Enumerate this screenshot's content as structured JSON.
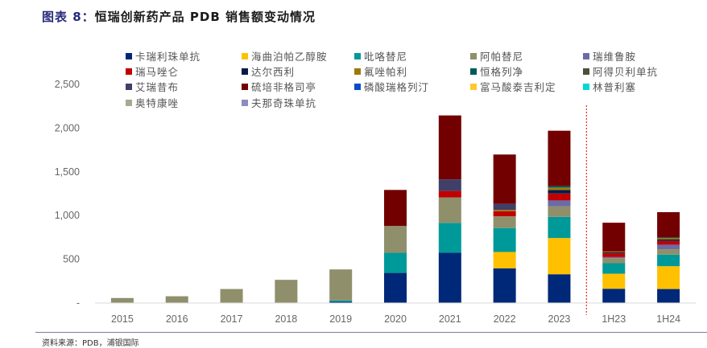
{
  "header": {
    "figure_label": "图表 8：",
    "title": "恒瑞创新药产品 PDB 销售额变动情况"
  },
  "footer": {
    "source": "资料来源：PDB，浦银国际"
  },
  "chart_data": {
    "type": "bar",
    "stacked": true,
    "title": "恒瑞创新药产品 PDB 销售额变动情况",
    "xlabel": "",
    "ylabel": "",
    "ylim": [
      0,
      2500
    ],
    "yticks": [
      0,
      500,
      1000,
      1500,
      2000,
      2500
    ],
    "ytick_labels": [
      "-",
      "500",
      "1,000",
      "1,500",
      "2,000",
      "2,500"
    ],
    "grid": false,
    "legend_position": "top",
    "separator_after_category": "2023",
    "separator_color": "#E0403A",
    "categories": [
      "2015",
      "2016",
      "2017",
      "2018",
      "2019",
      "2020",
      "2021",
      "2022",
      "2023",
      "1H23",
      "1H24"
    ],
    "series": [
      {
        "name": "卡瑞利珠单抗",
        "color": "#002878",
        "values": [
          0,
          0,
          0,
          0,
          15,
          344,
          575,
          396,
          329,
          163,
          160
        ]
      },
      {
        "name": "海曲泊帕乙醇胺",
        "color": "#FFC000",
        "values": [
          0,
          0,
          0,
          0,
          0,
          0,
          0,
          188,
          414,
          172,
          261
        ]
      },
      {
        "name": "吡咯替尼",
        "color": "#009999",
        "values": [
          0,
          0,
          0,
          0,
          15,
          230,
          341,
          273,
          242,
          120,
          132
        ]
      },
      {
        "name": "阿帕替尼",
        "color": "#8F8F6B",
        "values": [
          57,
          77,
          160,
          265,
          354,
          307,
          291,
          135,
          120,
          58,
          62
        ]
      },
      {
        "name": "瑞维鲁胺",
        "color": "#6B6BA8",
        "values": [
          0,
          0,
          0,
          0,
          0,
          0,
          0,
          0,
          68,
          12,
          52
        ]
      },
      {
        "name": "瑞马唑仑",
        "color": "#C00000",
        "values": [
          0,
          0,
          0,
          0,
          0,
          0,
          74,
          58,
          79,
          43,
          43
        ]
      },
      {
        "name": "达尔西利",
        "color": "#0A1A48",
        "values": [
          0,
          0,
          0,
          0,
          0,
          0,
          0,
          0,
          40,
          12,
          16
        ]
      },
      {
        "name": "氟唑帕利",
        "color": "#9C7A0A",
        "values": [
          0,
          0,
          0,
          0,
          0,
          0,
          0,
          16,
          28,
          9,
          15
        ]
      },
      {
        "name": "恒格列净",
        "color": "#005A5A",
        "values": [
          0,
          0,
          0,
          0,
          0,
          0,
          0,
          0,
          18,
          0,
          9
        ]
      },
      {
        "name": "阿得贝利单抗",
        "color": "#4F4F3A",
        "values": [
          0,
          0,
          0,
          0,
          0,
          0,
          0,
          0,
          0,
          0,
          0
        ]
      },
      {
        "name": "艾瑞昔布",
        "color": "#3F3F68",
        "values": [
          0,
          0,
          0,
          0,
          0,
          0,
          133,
          67,
          0,
          0,
          0
        ]
      },
      {
        "name": "硫培非格司亭",
        "color": "#720000",
        "values": [
          0,
          0,
          0,
          0,
          0,
          412,
          731,
          565,
          632,
          329,
          289
        ]
      },
      {
        "name": "磷酸瑞格列汀",
        "color": "#0A4CC8",
        "values": [
          0,
          0,
          0,
          0,
          0,
          0,
          0,
          0,
          0,
          0,
          0
        ]
      },
      {
        "name": "富马酸泰吉利定",
        "color": "#FFC830",
        "values": [
          0,
          0,
          0,
          0,
          0,
          0,
          0,
          0,
          0,
          0,
          0
        ]
      },
      {
        "name": "林普利塞",
        "color": "#00D8D8",
        "values": [
          0,
          0,
          0,
          0,
          0,
          0,
          0,
          0,
          0,
          0,
          0
        ]
      },
      {
        "name": "奥特康唑",
        "color": "#A9A98F",
        "values": [
          0,
          0,
          0,
          0,
          0,
          0,
          0,
          0,
          0,
          0,
          0
        ]
      },
      {
        "name": "夫那奇珠单抗",
        "color": "#8C8CC0",
        "values": [
          0,
          0,
          0,
          0,
          0,
          0,
          0,
          0,
          0,
          0,
          0
        ]
      }
    ]
  }
}
